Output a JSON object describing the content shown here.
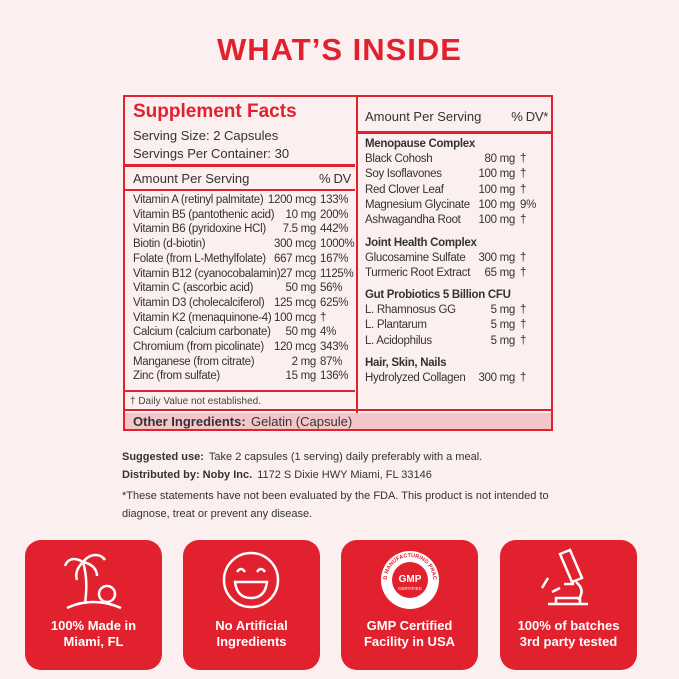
{
  "title": "WHAT’S INSIDE",
  "facts": {
    "heading": "Supplement Facts",
    "serving_size": "Serving Size: 2 Capsules",
    "servings": "Servings Per Container: 30",
    "left_header": [
      "Amount Per Serving",
      "% DV"
    ],
    "left_rows": [
      [
        "Vitamin A (retinyl palmitate)",
        "1200 mcg",
        "133%"
      ],
      [
        "Vitamin B5 (pantothenic acid)",
        "10 mg",
        "200%"
      ],
      [
        "Vitamin B6 (pyridoxine HCl)",
        "7.5 mg",
        "442%"
      ],
      [
        "Biotin (d-biotin)",
        "300 mcg",
        "1000%"
      ],
      [
        "Folate (from L-Methylfolate)",
        "667 mcg",
        "167%"
      ],
      [
        "Vitamin B12 (cyanocobalamin)",
        "27 mcg",
        "1125%"
      ],
      [
        "Vitamin C (ascorbic acid)",
        "50 mg",
        "56%"
      ],
      [
        "Vitamin D3 (cholecalciferol)",
        "125 mcg",
        "625%"
      ],
      [
        "Vitamin K2 (menaquinone-4)",
        "100 mcg",
        "†"
      ],
      [
        "Calcium (calcium carbonate)",
        "50 mg",
        "4%"
      ],
      [
        "Chromium (from picolinate)",
        "120 mcg",
        "343%"
      ],
      [
        "Manganese (from citrate)",
        "2 mg",
        "87%"
      ],
      [
        "Zinc (from sulfate)",
        "15 mg",
        "136%"
      ]
    ],
    "footnote": "† Daily Value not established.",
    "other_label": "Other Ingredients:",
    "other_value": "Gelatin (Capsule)",
    "right_header": [
      "Amount Per Serving",
      "% DV*"
    ],
    "groups": [
      {
        "title": "Menopause Complex",
        "rows": [
          [
            "Black Cohosh",
            "80 mg",
            "†"
          ],
          [
            "Soy Isoflavones",
            "100 mg",
            "†"
          ],
          [
            "Red Clover Leaf",
            "100 mg",
            "†"
          ],
          [
            "Magnesium Glycinate",
            "100 mg",
            "9%"
          ],
          [
            "Ashwagandha Root",
            "100 mg",
            "†"
          ]
        ]
      },
      {
        "title": "Joint Health Complex",
        "rows": [
          [
            "Glucosamine Sulfate",
            "300 mg",
            "†"
          ],
          [
            "Turmeric Root Extract",
            "65 mg",
            "†"
          ]
        ]
      },
      {
        "title": "Gut Probiotics 5 Billion CFU",
        "rows": [
          [
            "L. Rhamnosus GG",
            "5 mg",
            "†"
          ],
          [
            "L. Plantarum",
            "5 mg",
            "†"
          ],
          [
            "L. Acidophilus",
            "5 mg",
            "†"
          ]
        ]
      },
      {
        "title": "Hair, Skin, Nails",
        "rows": [
          [
            "Hydrolyzed Collagen",
            "300 mg",
            "†"
          ]
        ]
      }
    ]
  },
  "notes": {
    "suggested_label": "Suggested use:",
    "suggested_text": "Take 2 capsules (1 serving) daily preferably with a meal.",
    "distributed_label": "Distributed by: Noby Inc.",
    "distributed_text": "1172 S Dixie HWY Miami, FL 33146",
    "disclaimer": "*These statements have not been evaluated by the FDA. This product is not intended to diagnose, treat or prevent any disease."
  },
  "badges": [
    "100% Made in Miami, FL",
    "No Artificial Ingredients",
    "GMP Certified Facility in USA",
    "100% of batches 3rd party tested"
  ],
  "gmp": {
    "arc": "GOOD MANUFACTURING PRACTICE",
    "mark": "GMP",
    "sub": "CERTIFIED"
  }
}
